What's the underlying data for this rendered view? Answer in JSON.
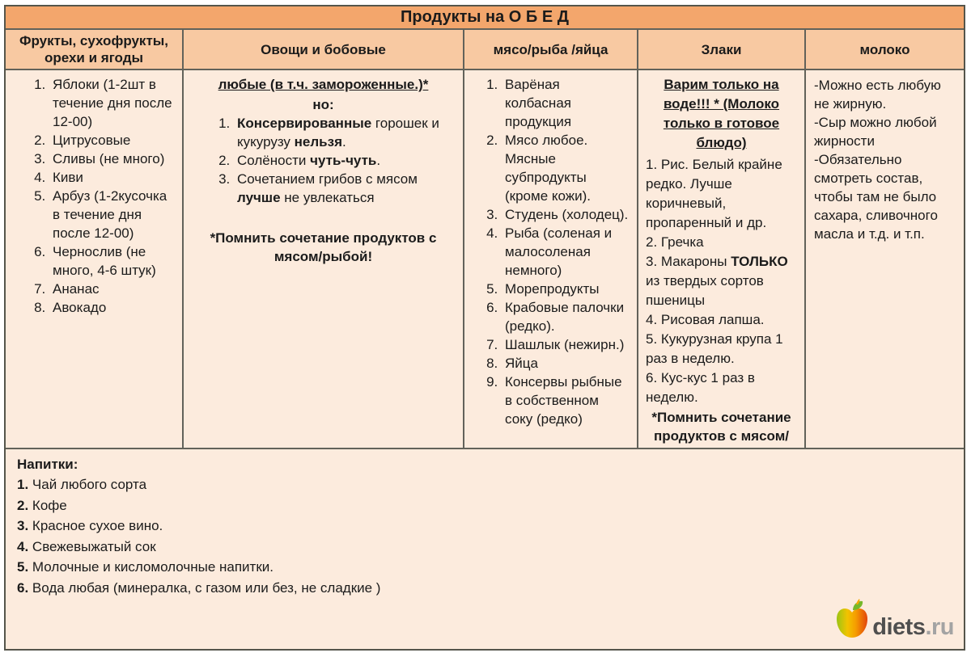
{
  "title": "Продукты на О Б Е Д",
  "colors": {
    "title_bg": "#f3a66c",
    "header_bg": "#f8c9a2",
    "body_bg": "#fcebdd",
    "border": "#62625a",
    "logo_dark": "#4f4f4f",
    "logo_gray": "#a3a3a3",
    "apple_green": "#9cc414",
    "apple_orange": "#f59d00",
    "apple_red": "#e2440d",
    "leaf_green": "#76b82a"
  },
  "columns": [
    {
      "header": "Фрукты, сухофрукты, орехи и ягоды",
      "items": [
        "Яблоки (1-2шт в течение дня после 12-00)",
        "Цитрусовые",
        "Сливы (не много)",
        "Киви",
        "Арбуз (1-2кусочка в течение дня после 12-00)",
        "Чернослив (не много, 4-6 штук)",
        "Ананас",
        "Авокадо"
      ]
    },
    {
      "header": "Овощи и бобовые",
      "heading_underlined": "любые (в т.ч. замороженные.)*",
      "heading2": "но:",
      "items": [
        "**Консервированные** горошек и кукурузу **нельзя**.",
        "Солёности **чуть-чуть**.",
        "Сочетанием грибов с мясом **лучше** не увлекаться"
      ],
      "footnote": "*Помнить сочетание продуктов с мясом/рыбой!"
    },
    {
      "header": "мясо/рыба /яйца",
      "items": [
        "Варёная колбасная продукция",
        "Мясо любое. Мясные субпродукты (кроме кожи).",
        "Студень (холодец).",
        "Рыба (соленая и малосоленая немного)",
        "Морепродукты",
        "Крабовые палочки (редко).",
        "Шашлык (нежирн.)",
        "Яйца",
        "Консервы рыбные в собственном соку (редко)"
      ]
    },
    {
      "header": "Злаки",
      "heading_underlined": "Варим только на воде!!! * (Молоко только в готовое блюдо)",
      "paragraphs": [
        "1. Рис. Белый крайне редко. Лучше коричневый, пропаренный и др.",
        "2. Гречка",
        "3. Макароны **ТОЛЬКО** из твердых сортов пшеницы",
        "4. Рисовая лапша.",
        "5. Кукурузная крупа 1 раз в неделю.",
        "6. Кус-кус 1 раз в неделю."
      ],
      "footnote": "*Помнить сочетание продуктов с мясом/рыбой!"
    },
    {
      "header": "молоко",
      "paragraphs": [
        "-Можно есть любую не жирную.",
        "-Сыр можно любой жирности",
        "-Обязательно смотреть состав, чтобы там не было сахара, сливочного масла и т.д. и т.п."
      ]
    }
  ],
  "drinks": {
    "heading": "Напитки:",
    "items": [
      "Чай любого сорта",
      "Кофе",
      "Красное сухое вино.",
      "Свежевыжатый сок",
      "Молочные и кисломолочные напитки.",
      "Вода любая (минералка, с газом или без,  не сладкие )"
    ]
  },
  "logo": {
    "name": "diets",
    "tld": ".ru"
  }
}
